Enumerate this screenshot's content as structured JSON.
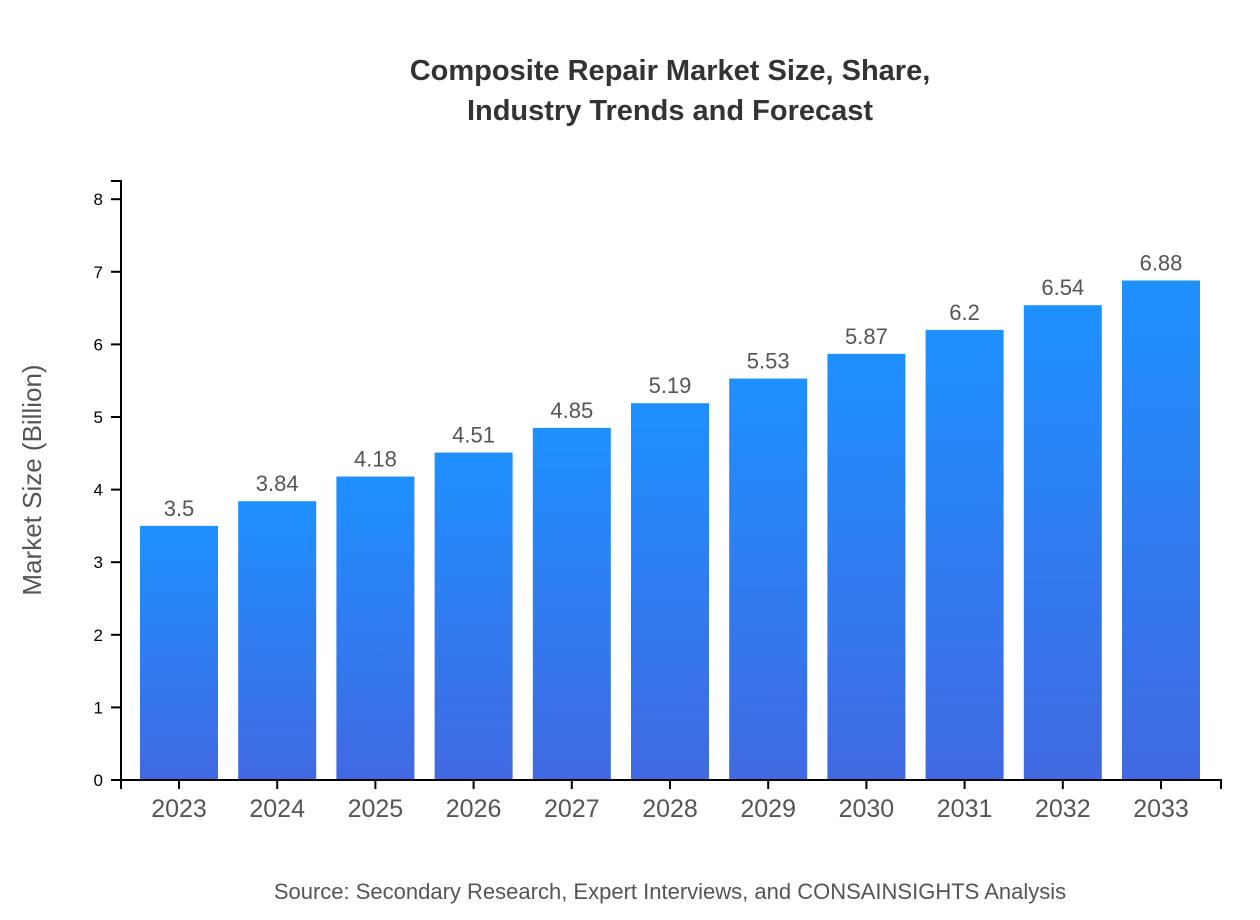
{
  "chart_data": {
    "type": "bar",
    "title_lines": [
      "Composite Repair Market Size, Share,",
      "Industry Trends and Forecast"
    ],
    "xlabel": "",
    "ylabel": "Market Size (Billion)",
    "categories": [
      "2023",
      "2024",
      "2025",
      "2026",
      "2027",
      "2028",
      "2029",
      "2030",
      "2031",
      "2032",
      "2033"
    ],
    "values": [
      3.5,
      3.84,
      4.18,
      4.51,
      4.85,
      5.19,
      5.53,
      5.87,
      6.2,
      6.54,
      6.88
    ],
    "data_labels": [
      "3.5",
      "3.84",
      "4.18",
      "4.51",
      "4.85",
      "5.19",
      "5.53",
      "5.87",
      "6.2",
      "6.54",
      "6.88"
    ],
    "yticks": [
      "0",
      "1",
      "2",
      "3",
      "4",
      "5",
      "6",
      "7",
      "8"
    ],
    "ylim": [
      0,
      8.25
    ],
    "grid": false,
    "colors": {
      "bar_top": "#1e90ff",
      "bar_bottom": "#4169e1"
    },
    "source": "Source: Secondary Research, Expert Interviews, and CONSAINSIGHTS Analysis"
  }
}
